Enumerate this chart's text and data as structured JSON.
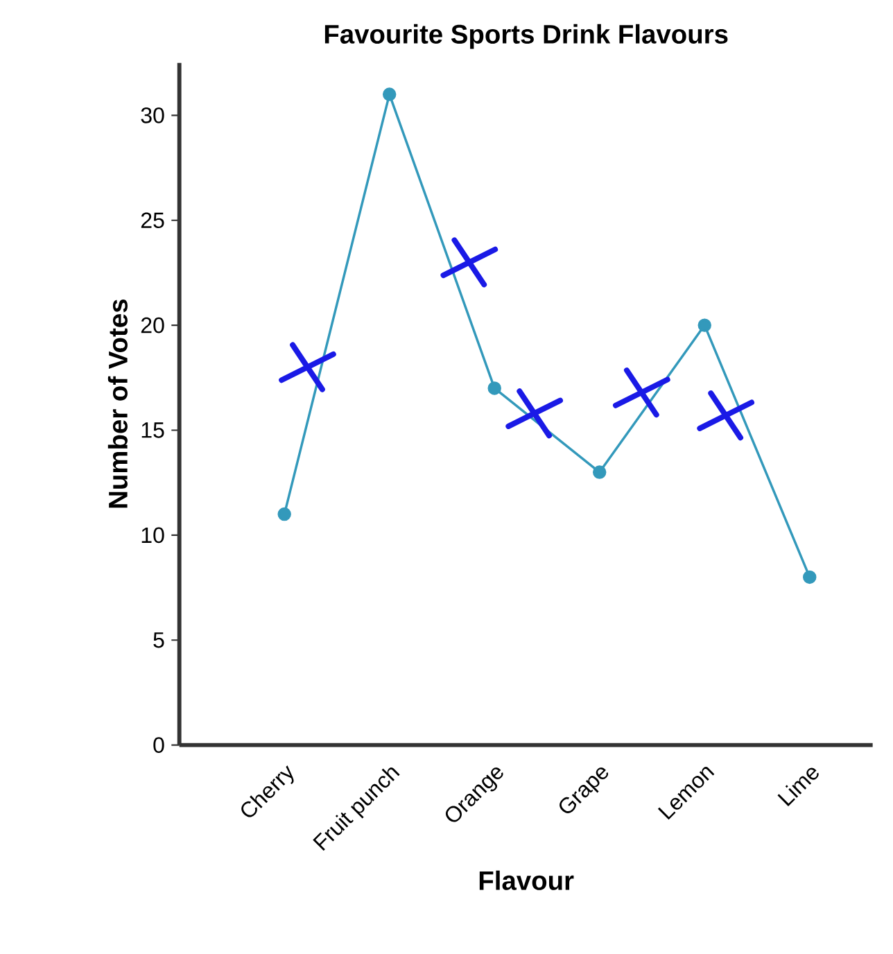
{
  "chart_data": {
    "type": "line",
    "title": "Favourite Sports Drink Flavours",
    "xlabel": "Flavour",
    "ylabel": "Number of Votes",
    "categories": [
      "Cherry",
      "Fruit punch",
      "Orange",
      "Grape",
      "Lemon",
      "Lime"
    ],
    "series": [
      {
        "color": "#3399bb",
        "values": [
          11,
          31,
          17,
          13,
          20,
          8
        ],
        "marker": "circle"
      }
    ],
    "ylim": [
      0,
      32.5
    ],
    "yticks": [
      0,
      5,
      10,
      15,
      20,
      25,
      30
    ],
    "line_style": "solid"
  }
}
